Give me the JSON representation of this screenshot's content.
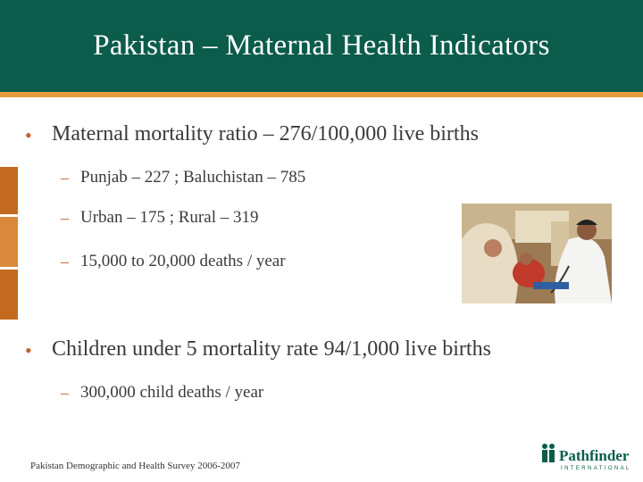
{
  "title": "Pakistan – Maternal Health Indicators",
  "bullets": [
    {
      "text": "Maternal mortality ratio – 276/100,000 live births",
      "sub": [
        "Punjab – 227 ; Baluchistan – 785",
        "Urban – 175 ; Rural – 319",
        "15,000 to 20,000 deaths / year"
      ]
    },
    {
      "text": "Children under 5 mortality rate 94/1,000 live births",
      "sub": [
        "300,000 child deaths / year"
      ]
    }
  ],
  "footer": "Pakistan Demographic and Health Survey 2006-2007",
  "logo": {
    "name": "Pathfinder",
    "tagline": "INTERNATIONAL"
  },
  "colors": {
    "header_bg": "#0b5c4a",
    "accent_orange": "#e69a3c",
    "bullet": "#c0622e"
  },
  "photo_icon": "clinic-photo"
}
